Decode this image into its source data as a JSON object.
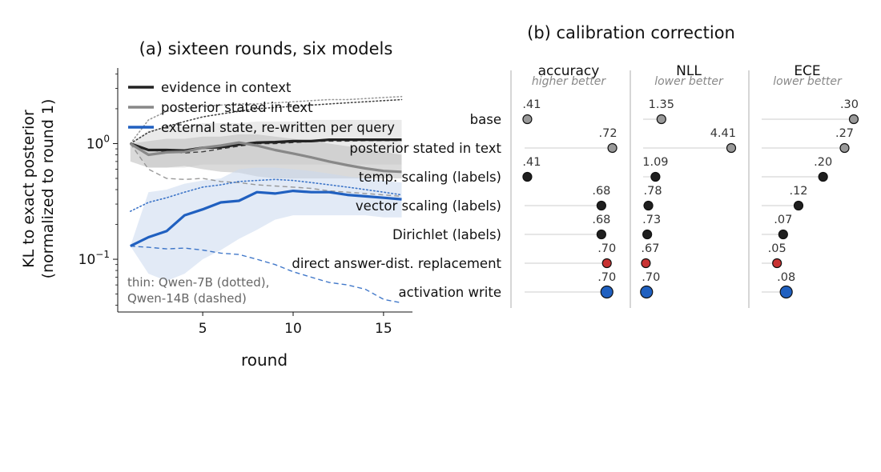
{
  "chart_data": [
    {
      "type": "line",
      "title": "(a) sixteen rounds, six models",
      "xlabel": "round",
      "ylabel": "KL to exact posterior",
      "ylabel_sub": "(normalized to round 1)",
      "yscale": "log",
      "xlim": [
        0.3,
        16.6
      ],
      "ylim": [
        0.035,
        4.5
      ],
      "x_ticks": [
        5,
        10,
        15
      ],
      "y_ticks": [
        {
          "value": 1.0,
          "base": "10",
          "exp": "0"
        },
        {
          "value": 0.1,
          "base": "10",
          "exp": "−1"
        }
      ],
      "grid": false,
      "legend_position": "top-left",
      "note_lines": [
        "thin: Qwen-7B (dotted),",
        "Qwen-14B (dashed)"
      ],
      "x": [
        1,
        2,
        3,
        4,
        5,
        6,
        7,
        8,
        9,
        10,
        11,
        12,
        13,
        14,
        15,
        16
      ],
      "series": [
        {
          "name": "evidence in context",
          "color": "#222222",
          "values": [
            1.0,
            0.88,
            0.88,
            0.87,
            0.92,
            0.93,
            0.98,
            1.02,
            1.03,
            1.05,
            1.05,
            1.08,
            1.08,
            1.08,
            1.08,
            1.08
          ],
          "band_low": [
            1.0,
            0.62,
            0.62,
            0.62,
            0.66,
            0.66,
            0.66,
            0.66,
            0.66,
            0.66,
            0.66,
            0.66,
            0.66,
            0.66,
            0.66,
            0.66
          ],
          "band_high": [
            1.0,
            1.3,
            1.4,
            1.4,
            1.5,
            1.5,
            1.5,
            1.55,
            1.55,
            1.55,
            1.6,
            1.6,
            1.6,
            1.6,
            1.6,
            1.6
          ],
          "band_color": "#d9d9d9",
          "dotted": [
            1.0,
            1.25,
            1.4,
            1.55,
            1.7,
            1.8,
            1.9,
            2.0,
            2.05,
            2.1,
            2.15,
            2.2,
            2.25,
            2.3,
            2.35,
            2.4
          ],
          "dashed": [
            1.0,
            0.88,
            0.85,
            0.83,
            0.85,
            0.9,
            0.95,
            1.0,
            1.0,
            1.02,
            1.04,
            1.05,
            1.05,
            1.06,
            1.06,
            1.06
          ]
        },
        {
          "name": "posterior stated in text",
          "color": "#888888",
          "values": [
            1.0,
            0.8,
            0.84,
            0.85,
            0.92,
            0.96,
            1.02,
            0.96,
            0.88,
            0.82,
            0.76,
            0.7,
            0.65,
            0.61,
            0.58,
            0.57
          ],
          "band_low": [
            0.7,
            0.62,
            0.62,
            0.64,
            0.6,
            0.57,
            0.56,
            0.52,
            0.5,
            0.5,
            0.5,
            0.5,
            0.5,
            0.5,
            0.5,
            0.5
          ],
          "band_high": [
            1.0,
            1.05,
            1.1,
            1.1,
            1.15,
            1.15,
            1.2,
            1.2,
            1.15,
            1.1,
            1.05,
            1.0,
            0.95,
            0.9,
            0.85,
            0.8
          ],
          "band_color": "#bbbbbb",
          "dotted": [
            1.0,
            1.6,
            1.9,
            2.0,
            2.1,
            2.15,
            2.2,
            2.2,
            2.25,
            2.3,
            2.35,
            2.4,
            2.4,
            2.45,
            2.5,
            2.55
          ],
          "dashed": [
            1.0,
            0.6,
            0.5,
            0.49,
            0.5,
            0.47,
            0.46,
            0.44,
            0.43,
            0.42,
            0.41,
            0.39,
            0.38,
            0.37,
            0.36,
            0.35
          ]
        },
        {
          "name": "external state, re-written per query",
          "color": "#2060c0",
          "values": [
            0.13,
            0.155,
            0.175,
            0.24,
            0.27,
            0.31,
            0.32,
            0.38,
            0.37,
            0.39,
            0.38,
            0.38,
            0.36,
            0.35,
            0.34,
            0.33
          ],
          "band_low": [
            0.13,
            0.075,
            0.065,
            0.075,
            0.1,
            0.12,
            0.15,
            0.18,
            0.22,
            0.24,
            0.24,
            0.24,
            0.24,
            0.24,
            0.23,
            0.23
          ],
          "band_high": [
            0.13,
            0.38,
            0.4,
            0.45,
            0.48,
            0.5,
            0.6,
            0.62,
            0.62,
            0.6,
            0.58,
            0.55,
            0.52,
            0.5,
            0.48,
            0.46
          ],
          "band_color": "#cad8ef",
          "dotted": [
            0.26,
            0.31,
            0.34,
            0.38,
            0.42,
            0.44,
            0.47,
            0.48,
            0.49,
            0.48,
            0.46,
            0.44,
            0.42,
            0.4,
            0.38,
            0.36
          ],
          "dashed": [
            0.13,
            0.127,
            0.123,
            0.125,
            0.12,
            0.113,
            0.11,
            0.1,
            0.09,
            0.078,
            0.07,
            0.063,
            0.06,
            0.055,
            0.045,
            0.042
          ]
        }
      ]
    },
    {
      "type": "scatter",
      "title": "(b) calibration correction",
      "categories": [
        "base",
        "posterior stated in text",
        "temp. scaling (labels)",
        "vector scaling (labels)",
        "Dirichlet (labels)",
        "direct answer-dist. replacement",
        "activation write"
      ],
      "point_colors": [
        "#999999",
        "#999999",
        "#1f1f1f",
        "#1f1f1f",
        "#1f1f1f",
        "#c83232",
        "#2060c0"
      ],
      "large_last": true,
      "panels": [
        {
          "name": "accuracy",
          "note": "higher better",
          "labels": [
            ".41",
            ".72",
            ".41",
            ".68",
            ".68",
            ".70",
            ".70"
          ],
          "values": [
            0.41,
            0.72,
            0.41,
            0.68,
            0.68,
            0.7,
            0.7
          ],
          "range": [
            0.4,
            0.73
          ]
        },
        {
          "name": "NLL",
          "note": "lower better",
          "labels": [
            "1.35",
            "4.41",
            "1.09",
            ".78",
            ".73",
            ".67",
            ".70"
          ],
          "values": [
            1.35,
            4.41,
            1.09,
            0.78,
            0.73,
            0.67,
            0.7
          ],
          "range": [
            0.55,
            4.55
          ]
        },
        {
          "name": "ECE",
          "note": "lower better",
          "labels": [
            ".30",
            ".27",
            ".20",
            ".12",
            ".07",
            ".05",
            ".08"
          ],
          "values": [
            0.3,
            0.27,
            0.2,
            0.12,
            0.07,
            0.05,
            0.08
          ],
          "range": [
            0.0,
            0.3
          ]
        }
      ]
    }
  ]
}
